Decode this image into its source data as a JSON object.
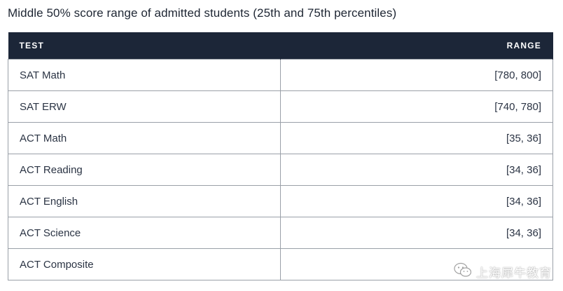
{
  "title": "Middle 50% score range of admitted students (25th and 75th percentiles)",
  "table": {
    "headers": {
      "test": "TEST",
      "range": "RANGE"
    },
    "rows": [
      {
        "test": "SAT Math",
        "range": "[780, 800]"
      },
      {
        "test": "SAT ERW",
        "range": "[740, 780]"
      },
      {
        "test": "ACT Math",
        "range": "[35, 36]"
      },
      {
        "test": "ACT Reading",
        "range": "[34, 36]"
      },
      {
        "test": "ACT English",
        "range": "[34, 36]"
      },
      {
        "test": "ACT Science",
        "range": "[34, 36]"
      },
      {
        "test": "ACT Composite",
        "range": ""
      }
    ]
  },
  "watermark": {
    "icon": "wechat-icon",
    "text": "上海犀牛教育"
  },
  "colors": {
    "header_bg": "#1c2638",
    "header_text": "#ffffff",
    "border": "#9aa0a8",
    "text": "#2b3444"
  }
}
